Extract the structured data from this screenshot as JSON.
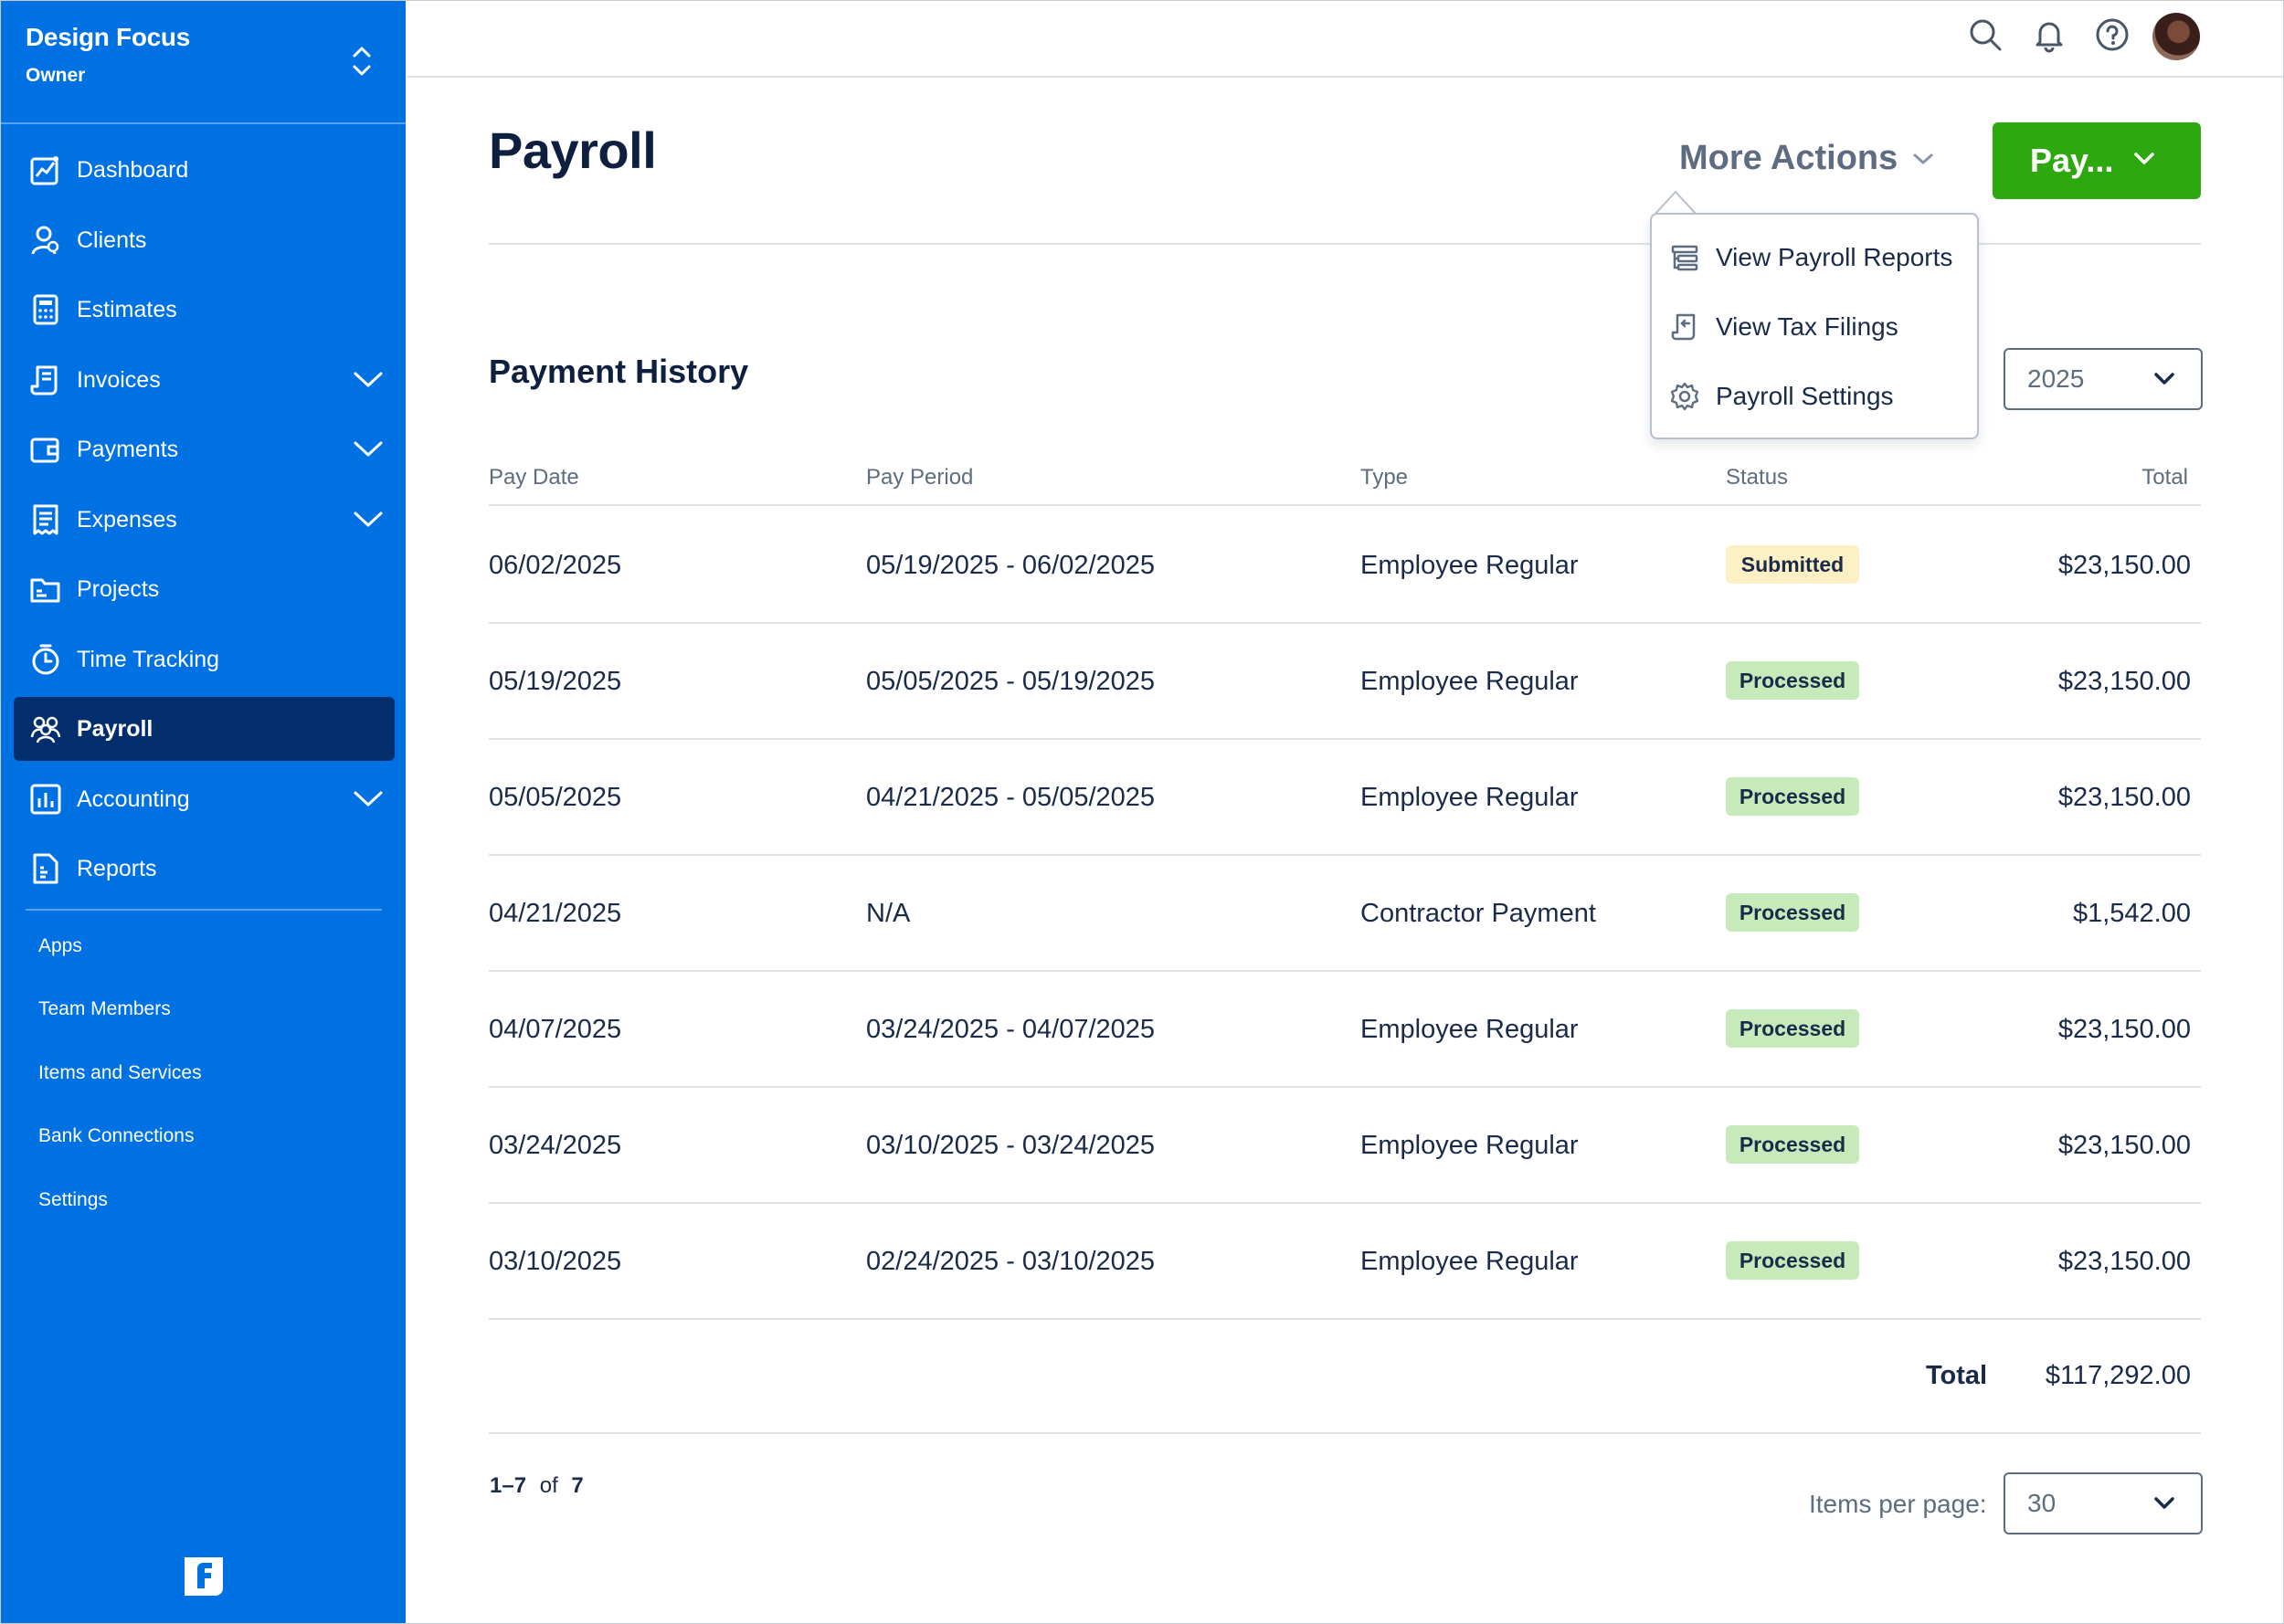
{
  "account": {
    "name": "Design Focus",
    "role": "Owner"
  },
  "sidebar": {
    "items": [
      {
        "label": "Dashboard",
        "icon": "dashboard-chart-icon"
      },
      {
        "label": "Clients",
        "icon": "person-icon"
      },
      {
        "label": "Estimates",
        "icon": "calculator-icon"
      },
      {
        "label": "Invoices",
        "icon": "invoice-icon",
        "expandable": true
      },
      {
        "label": "Payments",
        "icon": "card-icon",
        "expandable": true
      },
      {
        "label": "Expenses",
        "icon": "receipt-icon",
        "expandable": true
      },
      {
        "label": "Projects",
        "icon": "folder-icon"
      },
      {
        "label": "Time Tracking",
        "icon": "stopwatch-icon"
      },
      {
        "label": "Payroll",
        "icon": "people-icon",
        "active": true
      },
      {
        "label": "Accounting",
        "icon": "bar-chart-icon",
        "expandable": true
      },
      {
        "label": "Reports",
        "icon": "report-document-icon"
      }
    ],
    "secondary": [
      "Apps",
      "Team Members",
      "Items and Services",
      "Bank Connections",
      "Settings"
    ]
  },
  "page": {
    "title": "Payroll"
  },
  "header": {
    "more_actions_label": "More Actions",
    "pay_button_label": "Pay..."
  },
  "more_actions_menu": [
    {
      "label": "View Payroll Reports",
      "icon": "report-list-icon"
    },
    {
      "label": "View Tax Filings",
      "icon": "tax-filing-icon"
    },
    {
      "label": "Payroll Settings",
      "icon": "gear-icon"
    }
  ],
  "history": {
    "title": "Payment History",
    "year_label_partial": ":",
    "year": "2025",
    "columns": [
      "Pay Date",
      "Pay Period",
      "Type",
      "Status",
      "Total"
    ],
    "rows": [
      {
        "pay_date": "06/02/2025",
        "pay_period": "05/19/2025 - 06/02/2025",
        "type": "Employee Regular",
        "status": "Submitted",
        "total": "$23,150.00"
      },
      {
        "pay_date": "05/19/2025",
        "pay_period": "05/05/2025 - 05/19/2025",
        "type": "Employee Regular",
        "status": "Processed",
        "total": "$23,150.00"
      },
      {
        "pay_date": "05/05/2025",
        "pay_period": "04/21/2025 - 05/05/2025",
        "type": "Employee Regular",
        "status": "Processed",
        "total": "$23,150.00"
      },
      {
        "pay_date": "04/21/2025",
        "pay_period": "N/A",
        "type": "Contractor Payment",
        "status": "Processed",
        "total": "$1,542.00"
      },
      {
        "pay_date": "04/07/2025",
        "pay_period": "03/24/2025 - 04/07/2025",
        "type": "Employee Regular",
        "status": "Processed",
        "total": "$23,150.00"
      },
      {
        "pay_date": "03/24/2025",
        "pay_period": "03/10/2025 - 03/24/2025",
        "type": "Employee Regular",
        "status": "Processed",
        "total": "$23,150.00"
      },
      {
        "pay_date": "03/10/2025",
        "pay_period": "02/24/2025 - 03/10/2025",
        "type": "Employee Regular",
        "status": "Processed",
        "total": "$23,150.00"
      }
    ],
    "total_label": "Total",
    "total_value": "$117,292.00"
  },
  "pagination": {
    "range": "1–7",
    "of": "of",
    "count": "7",
    "items_per_page_label": "Items per page:",
    "items_per_page": "30"
  },
  "colors": {
    "sidebar": "#0071e3",
    "sidebar_active": "#032e6e",
    "primary_button": "#2ea80f",
    "submitted_badge": "#fdf0c4",
    "processed_badge": "#c6eab9"
  }
}
